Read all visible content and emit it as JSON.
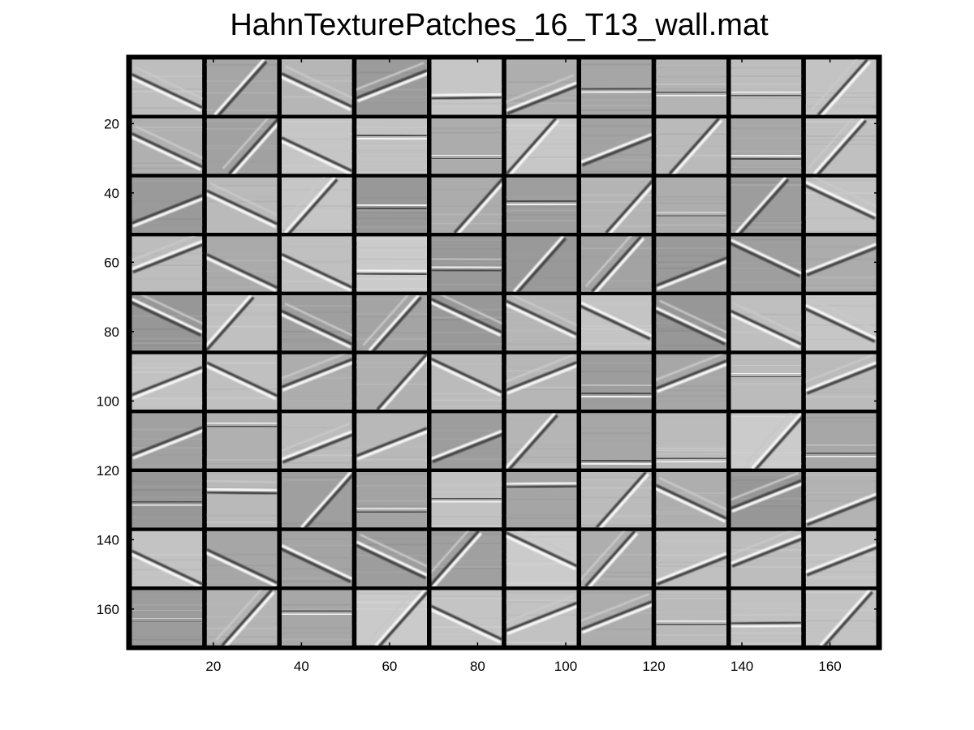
{
  "title": "HahnTexturePatches_16_T13_wall.mat",
  "grid": {
    "rows": 10,
    "cols": 10,
    "patch_size": 16,
    "separator": 1
  },
  "axes": {
    "xlim": [
      0.5,
      171.5
    ],
    "ylim": [
      0.5,
      171.5
    ],
    "x_ticks": [
      20,
      40,
      60,
      80,
      100,
      120,
      140,
      160
    ],
    "y_ticks": [
      20,
      40,
      60,
      80,
      100,
      120,
      140,
      160
    ],
    "x_tick_labels": [
      "20",
      "40",
      "60",
      "80",
      "100",
      "120",
      "140",
      "160"
    ],
    "y_tick_labels": [
      "20",
      "40",
      "60",
      "80",
      "100",
      "120",
      "140",
      "160"
    ]
  },
  "colormap": "gray",
  "background_color": "#ffffff",
  "separator_color": "#000000"
}
